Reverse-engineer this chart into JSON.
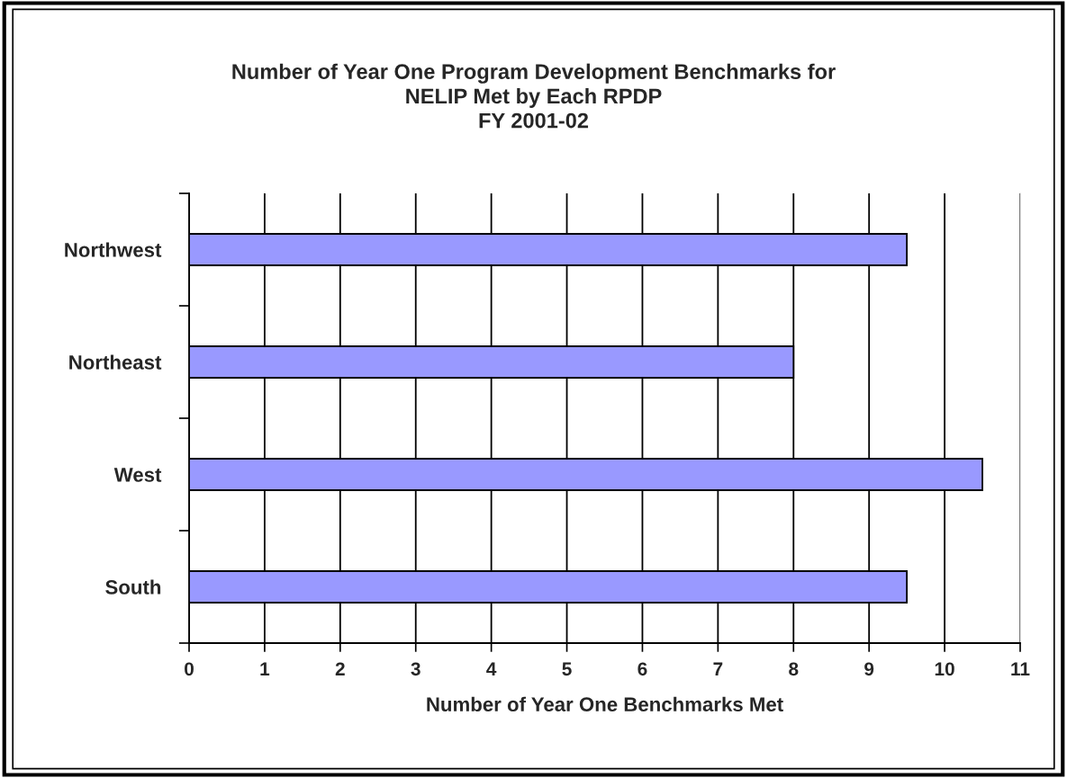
{
  "chart_data": {
    "type": "bar",
    "orientation": "horizontal",
    "title": "Number of Year One Program Development Benchmarks for\nNELIP Met by Each RPDP\nFY 2001-02",
    "xlabel": "Number of Year One Benchmarks Met",
    "categories": [
      "Northwest",
      "Northeast",
      "West",
      "South"
    ],
    "values": [
      9.5,
      8,
      10.5,
      9.5
    ],
    "color": "#9999ff",
    "xlim": [
      0,
      11
    ],
    "xticks": [
      0,
      1,
      2,
      3,
      4,
      5,
      6,
      7,
      8,
      9,
      10,
      11
    ],
    "grid": "x",
    "legend": false
  }
}
